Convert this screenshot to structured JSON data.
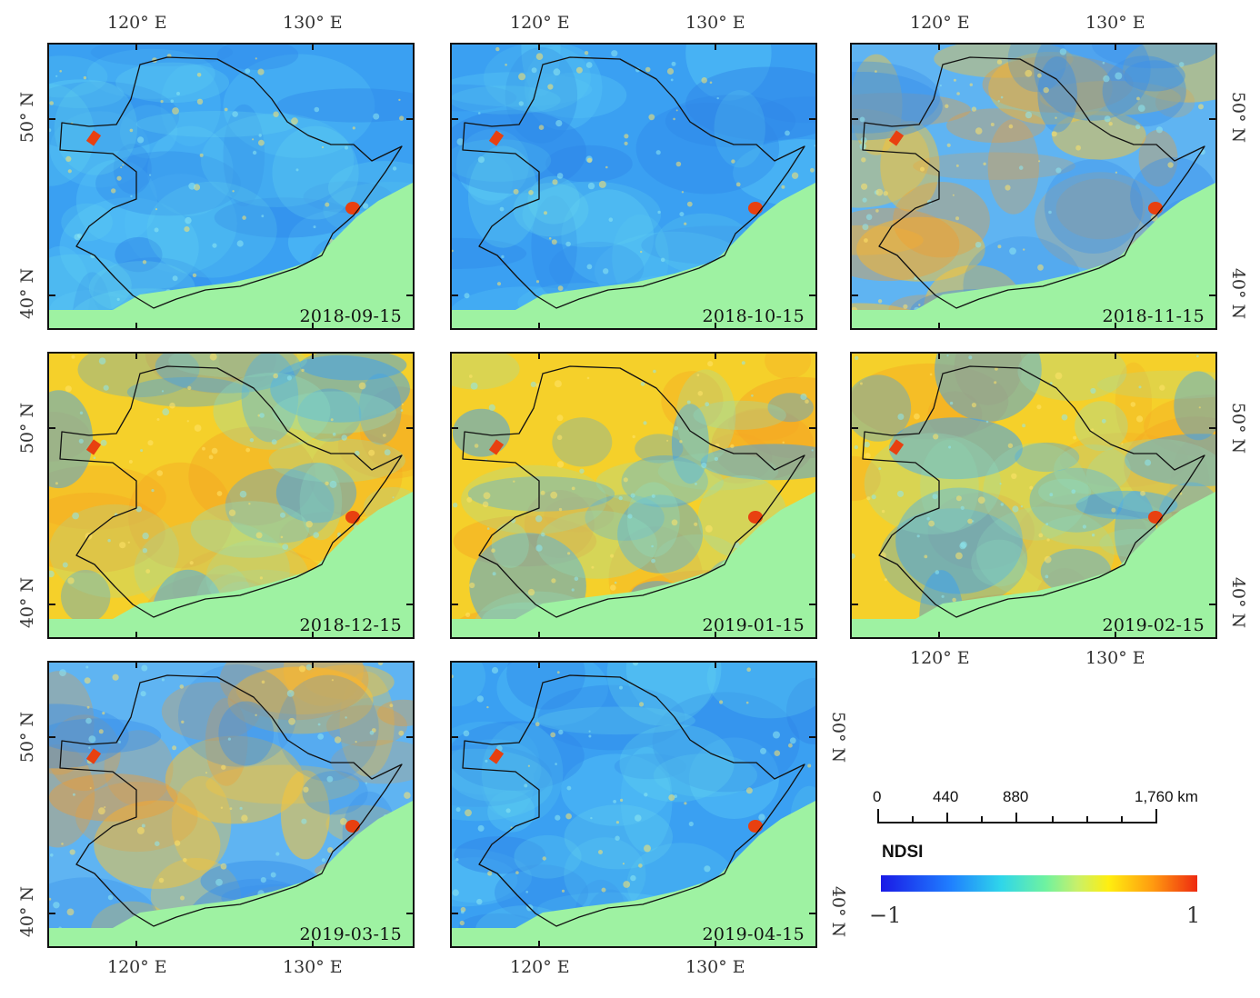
{
  "panels": [
    {
      "date": "2018-09-15",
      "scheme": "blue"
    },
    {
      "date": "2018-10-15",
      "scheme": "blue"
    },
    {
      "date": "2018-11-15",
      "scheme": "mixed"
    },
    {
      "date": "2018-12-15",
      "scheme": "yellow"
    },
    {
      "date": "2019-01-15",
      "scheme": "yellow"
    },
    {
      "date": "2019-02-15",
      "scheme": "yellow"
    },
    {
      "date": "2019-03-15",
      "scheme": "mixed"
    },
    {
      "date": "2019-04-15",
      "scheme": "blue"
    }
  ],
  "axis": {
    "lon_120": "120° E",
    "lon_130": "130° E",
    "lat_50": "50° N",
    "lat_40": "40° N"
  },
  "scale_bar": {
    "l0": "0",
    "l1": "440",
    "l2": "880",
    "l3": "1,760 km"
  },
  "legend": {
    "title": "NDSI",
    "min": "−1",
    "max": "1"
  },
  "colors": {
    "sea": "#9ef2a2",
    "blue_base": "#3aa0f2",
    "yellow_base": "#f5d02a",
    "red": "#e84010"
  }
}
